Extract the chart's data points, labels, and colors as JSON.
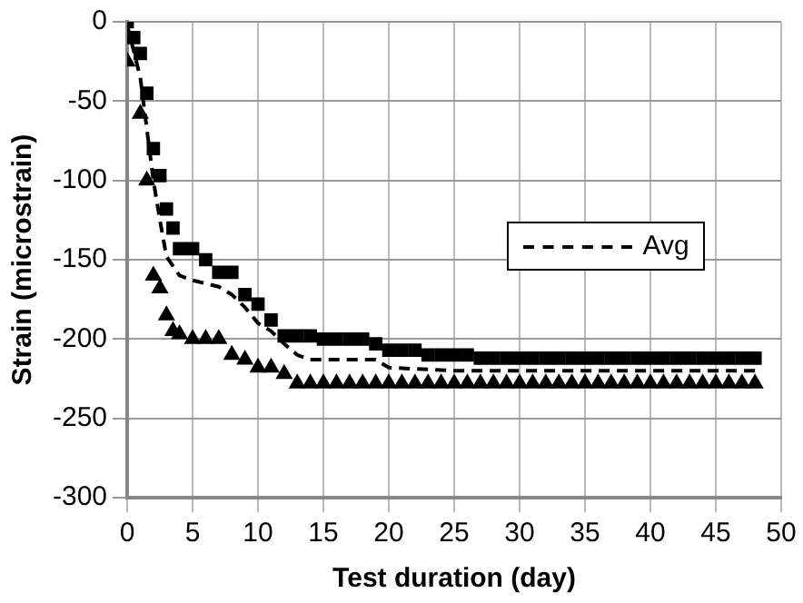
{
  "chart_data": {
    "type": "scatter",
    "xlabel": "Test duration (day)",
    "ylabel": "Strain (microstrain)",
    "xlim": [
      0,
      50
    ],
    "xticks": [
      0,
      5,
      10,
      15,
      20,
      25,
      30,
      35,
      40,
      45,
      50
    ],
    "ylim": [
      -300,
      0
    ],
    "yticks": [
      -300,
      -250,
      -200,
      -150,
      -100,
      -50,
      0
    ],
    "grid": true,
    "legend": "right",
    "series": [
      {
        "type": "scatter",
        "marker": "square",
        "color": "#000000",
        "x": [
          0,
          0.5,
          1,
          1.5,
          2,
          2.5,
          3,
          3.5,
          4,
          5,
          6,
          7,
          8,
          9,
          10,
          11,
          12,
          13,
          14,
          15,
          16,
          17,
          18,
          19,
          20,
          21,
          22,
          23,
          24,
          25,
          26,
          27,
          28,
          29,
          30,
          31,
          32,
          33,
          34,
          35,
          36,
          37,
          38,
          39,
          40,
          41,
          42,
          43,
          44,
          45,
          46,
          47,
          48
        ],
        "values": [
          0,
          -10,
          -20,
          -45,
          -80,
          -97,
          -118,
          -130,
          -143,
          -143,
          -150,
          -158,
          -158,
          -172,
          -178,
          -188,
          -198,
          -198,
          -198,
          -200,
          -200,
          -200,
          -200,
          -203,
          -207,
          -207,
          -207,
          -210,
          -210,
          -210,
          -210,
          -212,
          -212,
          -212,
          -212,
          -212,
          -212,
          -212,
          -212,
          -212,
          -212,
          -212,
          -212,
          -212,
          -212,
          -212,
          -212,
          -212,
          -212,
          -212,
          -212,
          -212,
          -212
        ]
      },
      {
        "type": "scatter",
        "marker": "triangle",
        "color": "#000000",
        "x": [
          0,
          1,
          1.5,
          2,
          2.5,
          3,
          3.5,
          4,
          5,
          6,
          7,
          8,
          9,
          10,
          11,
          12,
          13,
          14,
          15,
          16,
          17,
          18,
          19,
          20,
          21,
          22,
          23,
          24,
          25,
          26,
          27,
          28,
          29,
          30,
          31,
          32,
          33,
          34,
          35,
          36,
          37,
          38,
          39,
          40,
          41,
          42,
          43,
          44,
          45,
          46,
          47,
          48
        ],
        "values": [
          -25,
          -58,
          -100,
          -160,
          -168,
          -185,
          -195,
          -197,
          -200,
          -200,
          -200,
          -210,
          -213,
          -218,
          -218,
          -222,
          -228,
          -228,
          -228,
          -228,
          -228,
          -228,
          -228,
          -228,
          -228,
          -228,
          -228,
          -228,
          -228,
          -228,
          -228,
          -228,
          -228,
          -228,
          -228,
          -228,
          -228,
          -228,
          -228,
          -228,
          -228,
          -228,
          -228,
          -228,
          -228,
          -228,
          -228,
          -228,
          -228,
          -228,
          -228,
          -228
        ]
      },
      {
        "type": "line",
        "name": "Avg",
        "marker": "none",
        "line_style": "dashed",
        "color": "#000000",
        "x": [
          0,
          1,
          2,
          2.5,
          3,
          4,
          5,
          6,
          7,
          8,
          9,
          10,
          11,
          12,
          13,
          14,
          19,
          20,
          25,
          30,
          48
        ],
        "values": [
          -2,
          -35,
          -100,
          -125,
          -148,
          -160,
          -163,
          -165,
          -167,
          -172,
          -180,
          -190,
          -195,
          -203,
          -210,
          -213,
          -213,
          -218,
          -220,
          -220,
          -220
        ]
      }
    ]
  }
}
